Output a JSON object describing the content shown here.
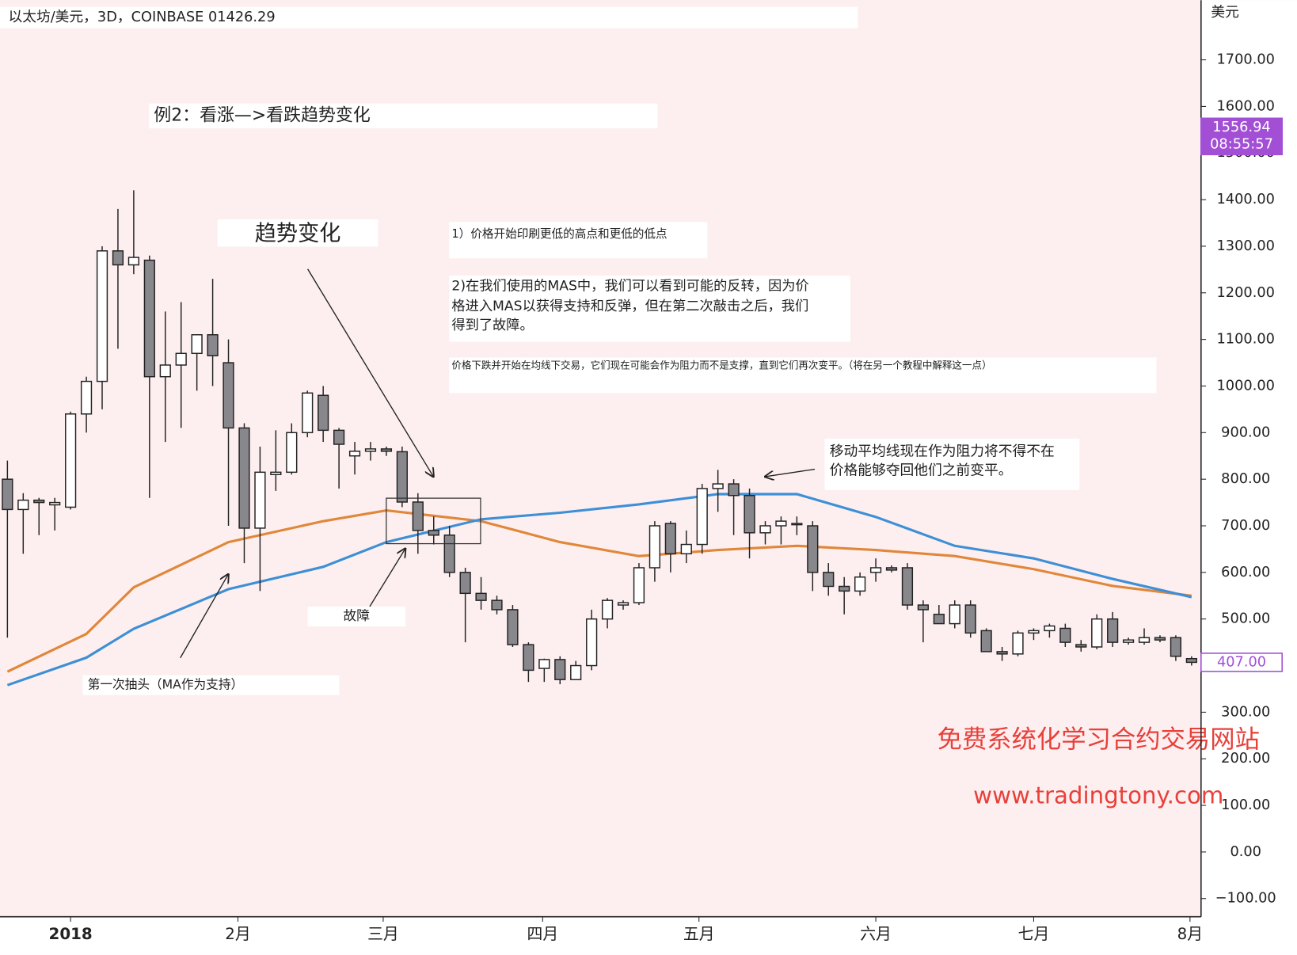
{
  "chart_data": {
    "type": "candlestick",
    "title": "以太坊/美元，3D，COINBASE 01426.29",
    "y_axis_label": "美元",
    "up_color": "#ffffff",
    "down_color": "#87878c",
    "outline_color": "#222222",
    "open": [
      800,
      735,
      755,
      745,
      740,
      940,
      1010,
      1290,
      1260,
      1270,
      1020,
      1045,
      1070,
      1110,
      1050,
      910,
      695,
      810,
      815,
      900,
      980,
      905,
      850,
      860,
      865,
      859,
      751,
      690,
      680,
      600,
      555,
      540,
      520,
      445,
      394,
      413,
      370,
      400,
      500,
      530,
      535,
      610,
      705,
      640,
      660,
      780,
      790,
      765,
      685,
      700,
      705,
      700,
      600,
      570,
      560,
      600,
      610,
      610,
      530,
      510,
      490,
      530,
      475,
      430,
      425,
      470,
      475,
      480,
      445,
      440,
      500,
      450,
      450,
      460,
      460,
      415
    ],
    "high": [
      840,
      770,
      760,
      760,
      945,
      1020,
      1300,
      1380,
      1420,
      1280,
      1160,
      1180,
      1110,
      1230,
      1100,
      920,
      870,
      905,
      920,
      990,
      1000,
      910,
      880,
      880,
      870,
      870,
      770,
      720,
      700,
      610,
      590,
      550,
      530,
      450,
      415,
      420,
      410,
      520,
      545,
      540,
      620,
      710,
      710,
      690,
      790,
      820,
      800,
      780,
      710,
      720,
      720,
      710,
      620,
      590,
      600,
      630,
      615,
      620,
      540,
      530,
      540,
      540,
      480,
      440,
      475,
      480,
      490,
      490,
      455,
      510,
      515,
      460,
      480,
      465,
      465,
      420
    ],
    "low": [
      460,
      640,
      680,
      690,
      735,
      900,
      950,
      1080,
      1240,
      760,
      880,
      910,
      990,
      1000,
      700,
      620,
      560,
      775,
      810,
      890,
      880,
      780,
      810,
      840,
      850,
      740,
      640,
      660,
      590,
      450,
      520,
      510,
      440,
      365,
      365,
      360,
      370,
      390,
      480,
      520,
      530,
      580,
      600,
      620,
      640,
      730,
      680,
      630,
      660,
      660,
      680,
      560,
      550,
      510,
      550,
      580,
      600,
      520,
      450,
      490,
      480,
      460,
      430,
      410,
      420,
      455,
      460,
      440,
      430,
      435,
      440,
      445,
      445,
      450,
      410,
      400
    ],
    "close": [
      735,
      755,
      750,
      750,
      940,
      1010,
      1290,
      1260,
      1276,
      1020,
      1045,
      1070,
      1110,
      1065,
      910,
      695,
      815,
      815,
      900,
      985,
      905,
      875,
      860,
      865,
      860,
      751,
      690,
      680,
      600,
      555,
      540,
      520,
      445,
      390,
      413,
      370,
      400,
      500,
      540,
      535,
      610,
      700,
      640,
      660,
      780,
      790,
      765,
      685,
      700,
      710,
      705,
      600,
      570,
      560,
      590,
      610,
      605,
      530,
      520,
      490,
      530,
      470,
      430,
      425,
      470,
      475,
      485,
      450,
      440,
      500,
      450,
      455,
      460,
      455,
      420,
      407
    ],
    "series": [
      {
        "color": "#e0873a",
        "x": [
          0,
          5,
          8,
          14,
          20,
          24,
          30,
          35,
          40,
          45,
          50,
          55,
          60,
          65,
          70,
          75
        ],
        "values": [
          387,
          468,
          568,
          665,
          710,
          733,
          710,
          665,
          635,
          648,
          657,
          648,
          635,
          607,
          571,
          550
        ]
      },
      {
        "color": "#3d8fd6",
        "x": [
          0,
          5,
          8,
          14,
          20,
          24,
          30,
          35,
          40,
          45,
          50,
          55,
          60,
          65,
          70,
          75
        ],
        "values": [
          358,
          417,
          479,
          564,
          612,
          665,
          714,
          728,
          746,
          768,
          768,
          719,
          657,
          630,
          586,
          547
        ]
      }
    ],
    "xlim": [
      -0.47,
      75.6
    ],
    "xticks": [
      {
        "value": 4,
        "label": "2018"
      },
      {
        "value": 14.6,
        "label": "2月"
      },
      {
        "value": 23.8,
        "label": "三月"
      },
      {
        "value": 33.9,
        "label": "四月"
      },
      {
        "value": 43.8,
        "label": "五月"
      },
      {
        "value": 55,
        "label": "六月"
      },
      {
        "value": 65,
        "label": "七月"
      },
      {
        "value": 74.9,
        "label": "8月"
      }
    ],
    "ylim": [
      -139,
      1828
    ],
    "yticks": [
      {
        "value": -100,
        "label": "−100.00"
      },
      {
        "value": 0,
        "label": "0.00"
      },
      {
        "value": 100,
        "label": "100.00"
      },
      {
        "value": 200,
        "label": "200.00"
      },
      {
        "value": 300,
        "label": "300.00"
      },
      {
        "value": 400,
        "label": "400.00"
      },
      {
        "value": 500,
        "label": "500.00"
      },
      {
        "value": 600,
        "label": "600.00"
      },
      {
        "value": 700,
        "label": "700.00"
      },
      {
        "value": 800,
        "label": "800.00"
      },
      {
        "value": 900,
        "label": "900.00"
      },
      {
        "value": 1000,
        "label": "1000.00"
      },
      {
        "value": 1100,
        "label": "1100.00"
      },
      {
        "value": 1200,
        "label": "1200.00"
      },
      {
        "value": 1300,
        "label": "1300.00"
      },
      {
        "value": 1400,
        "label": "1400.00"
      },
      {
        "value": 1500,
        "label": "1500.00"
      },
      {
        "value": 1600,
        "label": "1600.00"
      },
      {
        "value": 1700,
        "label": "1700.00"
      }
    ],
    "price_labels": [
      {
        "value": 1556.94,
        "label": "1556.94",
        "sublabel": "08:55:57",
        "style": "filled",
        "color": "#a24fd6"
      },
      {
        "value": 407,
        "label": "407.00",
        "style": "outline",
        "color": "#a24fd6"
      }
    ],
    "annotations": {
      "example": "例2：看涨—>看跌趋势变化",
      "trend_change": "趋势变化",
      "point1": "1）价格开始印刷更低的高点和更低的低点",
      "point2": [
        "2)在我们使用的MAS中，我们可以看到可能的反转，因为价",
        "格进入MAS以获得支持和反弹，但在第二次敲击之后，我们",
        "得到了故障。"
      ],
      "point3": "价格下跌并开始在均线下交易，它们现在可能会作为阻力而不是支撑，直到它们再次变平。（将在另一个教程中解释这一点）",
      "resistance": [
        "移动平均线现在作为阻力将不得不在",
        "价格能够夺回他们之前变平。"
      ],
      "failure": "故障",
      "first_tap": "第一次抽头（MA作为支持）",
      "watermark": "免费系统化学习合约交易网站",
      "website": "www.tradingtony.com"
    }
  }
}
